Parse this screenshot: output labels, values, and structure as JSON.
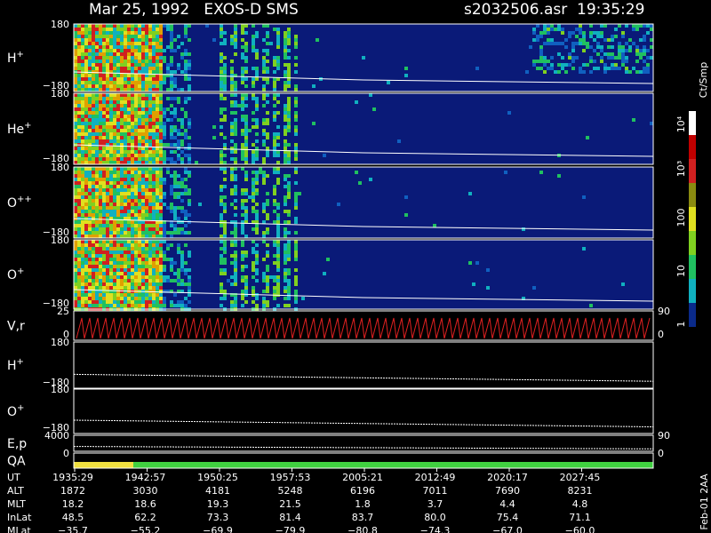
{
  "header": {
    "title": "Mar 25, 1992   EXOS-D SMS",
    "file_time": "s2032506.asr  19:35:29"
  },
  "panels": [
    {
      "label": "H",
      "sup": "+",
      "left_ticks": [
        "180",
        "−180"
      ]
    },
    {
      "label": "He",
      "sup": "+",
      "left_ticks": [
        "180",
        "−180"
      ]
    },
    {
      "label": "O",
      "sup": "++",
      "left_ticks": [
        "180",
        "−180"
      ]
    },
    {
      "label": "O",
      "sup": "+",
      "left_ticks": [
        "180",
        "−180"
      ]
    },
    {
      "label": "V,r",
      "left_ticks": [
        "25",
        "0"
      ],
      "right_ticks": [
        "90",
        "0"
      ]
    },
    {
      "label": "H",
      "sup": "+",
      "left_ticks": [
        "180",
        "−180"
      ]
    },
    {
      "label": "O",
      "sup": "+",
      "left_ticks": [
        "180",
        "−180"
      ]
    },
    {
      "label": "E,p",
      "left_ticks": [
        "4000"
      ],
      "right_ticks": [
        "90"
      ]
    },
    {
      "label": "QA",
      "left_ticks": [
        "0"
      ],
      "right_ticks": [
        "0"
      ]
    }
  ],
  "colorbar": {
    "unit": "Ct/Smp",
    "ticks": [
      "10⁴",
      "10³",
      "100",
      "10",
      "1"
    ]
  },
  "footer_note": "Feb-01 2AA",
  "table": {
    "rows": [
      {
        "label": "UT",
        "values": [
          "1935:29",
          "1942:57",
          "1950:25",
          "1957:53",
          "2005:21",
          "2012:49",
          "2020:17",
          "2027:45"
        ]
      },
      {
        "label": "ALT",
        "values": [
          "1872",
          "3030",
          "4181",
          "5248",
          "6196",
          "7011",
          "7690",
          "8231"
        ]
      },
      {
        "label": "MLT",
        "values": [
          "18.2",
          "18.6",
          "19.3",
          "21.5",
          "1.8",
          "3.7",
          "4.4",
          "4.8"
        ]
      },
      {
        "label": "InLat",
        "values": [
          "48.5",
          "62.2",
          "73.3",
          "81.4",
          "83.7",
          "80.0",
          "75.4",
          "71.1"
        ]
      },
      {
        "label": "MLat",
        "values": [
          "−35.7",
          "−55.2",
          "−69.9",
          "−79.9",
          "−80.8",
          "−74.3",
          "−67.0",
          "−60.0"
        ]
      }
    ]
  }
}
